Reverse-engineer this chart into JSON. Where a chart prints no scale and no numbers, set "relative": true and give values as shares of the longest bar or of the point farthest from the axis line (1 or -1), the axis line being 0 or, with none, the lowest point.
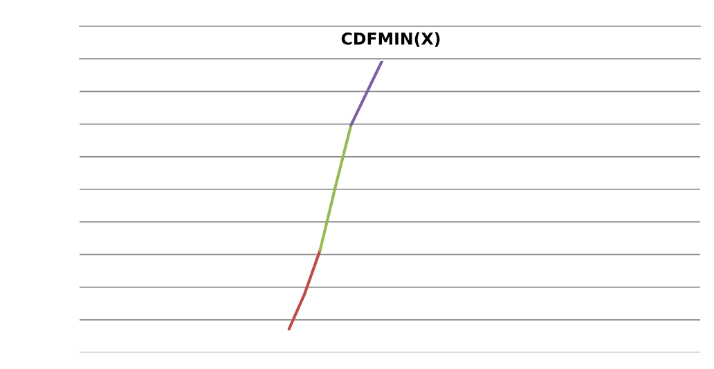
{
  "chart_data": {
    "type": "line",
    "title": "CDFMIN(X)",
    "relative": true,
    "categories": [
      null,
      null,
      null,
      null,
      null,
      null,
      null,
      null,
      null,
      null,
      null,
      null,
      null,
      null,
      null,
      null,
      null,
      null,
      null,
      null,
      null,
      null,
      null,
      null,
      null,
      null,
      null,
      null,
      null,
      null,
      null,
      null,
      null,
      null,
      null,
      null,
      null,
      null,
      null,
      null
    ],
    "series": [
      {
        "color": "#be4b48",
        "values": [
          null,
          null,
          null,
          null,
          null,
          null,
          null,
          null,
          null,
          null,
          null,
          null,
          null,
          0.08,
          0.2,
          0.35,
          null,
          null,
          null,
          null,
          null,
          null,
          null,
          null,
          null,
          null,
          null,
          null,
          null,
          null,
          null,
          null,
          null,
          null,
          null,
          null,
          null,
          null,
          null,
          null
        ]
      },
      {
        "color": "#98b954",
        "values": [
          null,
          null,
          null,
          null,
          null,
          null,
          null,
          null,
          null,
          null,
          null,
          null,
          null,
          null,
          null,
          0.35,
          0.57,
          0.78,
          null,
          null,
          null,
          null,
          null,
          null,
          null,
          null,
          null,
          null,
          null,
          null,
          null,
          null,
          null,
          null,
          null,
          null,
          null,
          null,
          null,
          null
        ]
      },
      {
        "color": "#7d60a0",
        "values": [
          null,
          null,
          null,
          null,
          null,
          null,
          null,
          null,
          null,
          null,
          null,
          null,
          null,
          null,
          null,
          null,
          null,
          0.78,
          0.89,
          1,
          null,
          null,
          null,
          null,
          null,
          null,
          null,
          null,
          null,
          null,
          null,
          null,
          null,
          null,
          null,
          null,
          null,
          null,
          null,
          null
        ]
      }
    ],
    "grid": "y",
    "marker": "none",
    "line_style": "solid"
  }
}
